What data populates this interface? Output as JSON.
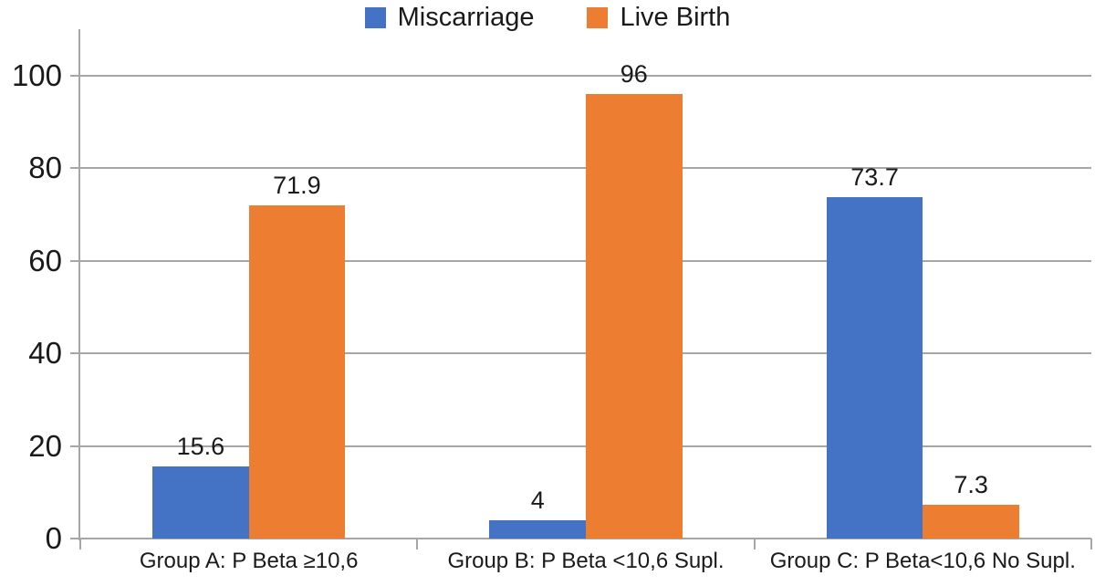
{
  "legend": {
    "position": "top",
    "items": [
      {
        "label": "Miscarriage",
        "color": "#4472C4"
      },
      {
        "label": "Live Birth",
        "color": "#ED7D31"
      }
    ]
  },
  "chart_data": {
    "type": "bar",
    "title": "",
    "categories": [
      "Group A: P Beta ≥10,6",
      "Group B: P Beta <10,6  Supl.",
      "Group C:  P Beta<10,6  No Supl."
    ],
    "series": [
      {
        "name": "Miscarriage",
        "color": "#4472C4",
        "values": [
          15.6,
          4,
          73.7
        ],
        "labels": [
          "15.6",
          "4",
          "73.7"
        ]
      },
      {
        "name": "Live Birth",
        "color": "#ED7D31",
        "values": [
          71.9,
          96,
          7.3
        ],
        "labels": [
          "71.9",
          "96",
          "7.3"
        ]
      }
    ],
    "y_ticks": [
      0,
      20,
      40,
      60,
      80,
      100
    ],
    "ylim": [
      0,
      110
    ],
    "grid": true,
    "legend_position": "top",
    "colors": {
      "grid": "#A6A6A6",
      "axis": "#A6A6A6",
      "text": "#1A1A1A"
    }
  }
}
